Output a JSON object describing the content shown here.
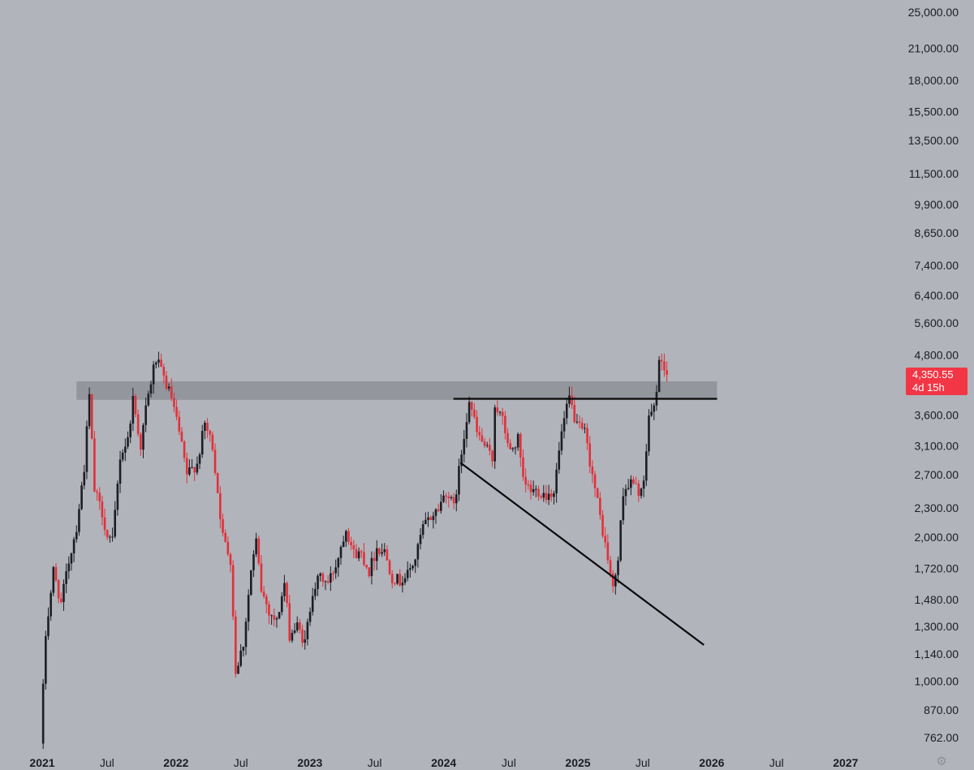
{
  "chart_data": {
    "type": "candlestick",
    "title": "",
    "xlabel": "",
    "ylabel": "",
    "y_scale": "log",
    "y_ticks": [
      "25,000.00",
      "21,000.00",
      "18,000.00",
      "15,500.00",
      "13,500.00",
      "11,500.00",
      "9,900.00",
      "8,650.00",
      "7,400.00",
      "6,400.00",
      "5,600.00",
      "4,800.00",
      "3,600.00",
      "3,100.00",
      "2,700.00",
      "2,300.00",
      "2,000.00",
      "1,720.00",
      "1,480.00",
      "1,300.00",
      "1,140.00",
      "1,000.00",
      "870.00",
      "762.00"
    ],
    "x_ticks": [
      {
        "label": "2021",
        "date": "2021-01-01",
        "bold": true
      },
      {
        "label": "Jul",
        "date": "2021-07-01",
        "bold": false
      },
      {
        "label": "2022",
        "date": "2022-01-01",
        "bold": true
      },
      {
        "label": "Jul",
        "date": "2022-07-01",
        "bold": false
      },
      {
        "label": "2023",
        "date": "2023-01-01",
        "bold": true
      },
      {
        "label": "Jul",
        "date": "2023-07-01",
        "bold": false
      },
      {
        "label": "2024",
        "date": "2024-01-01",
        "bold": true
      },
      {
        "label": "Jul",
        "date": "2024-07-01",
        "bold": false
      },
      {
        "label": "2025",
        "date": "2025-01-01",
        "bold": true
      },
      {
        "label": "Jul",
        "date": "2025-07-01",
        "bold": false
      },
      {
        "label": "2026",
        "date": "2026-01-01",
        "bold": true
      },
      {
        "label": "Jul",
        "date": "2026-07-01",
        "bold": false
      },
      {
        "label": "2027",
        "date": "2027-01-01",
        "bold": true
      }
    ],
    "price_path": [
      [
        "2021-01-01",
        740
      ],
      [
        "2021-01-15",
        1250
      ],
      [
        "2021-02-05",
        1700
      ],
      [
        "2021-02-26",
        1450
      ],
      [
        "2021-03-19",
        1780
      ],
      [
        "2021-04-09",
        2100
      ],
      [
        "2021-04-30",
        2800
      ],
      [
        "2021-05-14",
        3950
      ],
      [
        "2021-05-28",
        2500
      ],
      [
        "2021-06-18",
        2250
      ],
      [
        "2021-07-02",
        2000
      ],
      [
        "2021-07-16",
        1950
      ],
      [
        "2021-08-06",
        2950
      ],
      [
        "2021-08-27",
        3200
      ],
      [
        "2021-09-10",
        3900
      ],
      [
        "2021-10-01",
        3100
      ],
      [
        "2021-10-15",
        3700
      ],
      [
        "2021-11-05",
        4500
      ],
      [
        "2021-11-12",
        4700
      ],
      [
        "2021-12-03",
        4300
      ],
      [
        "2021-12-24",
        3900
      ],
      [
        "2022-01-14",
        3300
      ],
      [
        "2022-02-04",
        2700
      ],
      [
        "2022-03-04",
        2850
      ],
      [
        "2022-03-25",
        3450
      ],
      [
        "2022-04-15",
        3100
      ],
      [
        "2022-05-13",
        2000
      ],
      [
        "2022-06-03",
        1800
      ],
      [
        "2022-06-17",
        1050
      ],
      [
        "2022-07-08",
        1200
      ],
      [
        "2022-07-29",
        1700
      ],
      [
        "2022-08-12",
        1950
      ],
      [
        "2022-08-26",
        1550
      ],
      [
        "2022-09-16",
        1400
      ],
      [
        "2022-10-07",
        1330
      ],
      [
        "2022-10-28",
        1600
      ],
      [
        "2022-11-11",
        1250
      ],
      [
        "2022-12-02",
        1300
      ],
      [
        "2022-12-23",
        1200
      ],
      [
        "2023-01-13",
        1550
      ],
      [
        "2023-02-03",
        1650
      ],
      [
        "2023-02-24",
        1600
      ],
      [
        "2023-03-17",
        1750
      ],
      [
        "2023-04-14",
        2100
      ],
      [
        "2023-05-05",
        1850
      ],
      [
        "2023-05-26",
        1850
      ],
      [
        "2023-06-16",
        1700
      ],
      [
        "2023-07-07",
        1900
      ],
      [
        "2023-07-28",
        1870
      ],
      [
        "2023-08-18",
        1650
      ],
      [
        "2023-09-08",
        1620
      ],
      [
        "2023-09-29",
        1670
      ],
      [
        "2023-10-20",
        1800
      ],
      [
        "2023-11-10",
        2100
      ],
      [
        "2023-12-01",
        2200
      ],
      [
        "2023-12-22",
        2300
      ],
      [
        "2024-01-12",
        2500
      ],
      [
        "2024-02-02",
        2300
      ],
      [
        "2024-02-23",
        3000
      ],
      [
        "2024-03-15",
        3900
      ],
      [
        "2024-04-05",
        3300
      ],
      [
        "2024-04-26",
        3100
      ],
      [
        "2024-05-17",
        2900
      ],
      [
        "2024-05-24",
        3800
      ],
      [
        "2024-06-14",
        3500
      ],
      [
        "2024-07-05",
        3000
      ],
      [
        "2024-07-26",
        3200
      ],
      [
        "2024-08-09",
        2600
      ],
      [
        "2024-08-30",
        2500
      ],
      [
        "2024-09-20",
        2500
      ],
      [
        "2024-10-11",
        2450
      ],
      [
        "2024-11-01",
        2500
      ],
      [
        "2024-11-22",
        3300
      ],
      [
        "2024-12-13",
        3900
      ],
      [
        "2025-01-03",
        3400
      ],
      [
        "2025-01-24",
        3300
      ],
      [
        "2025-02-14",
        2700
      ],
      [
        "2025-03-07",
        2200
      ],
      [
        "2025-03-28",
        1800
      ],
      [
        "2025-04-11",
        1550
      ],
      [
        "2025-04-25",
        1800
      ],
      [
        "2025-05-09",
        2500
      ],
      [
        "2025-05-30",
        2600
      ],
      [
        "2025-06-20",
        2500
      ],
      [
        "2025-07-04",
        2550
      ],
      [
        "2025-07-18",
        3600
      ],
      [
        "2025-08-01",
        3700
      ],
      [
        "2025-08-15",
        4600
      ],
      [
        "2025-08-22",
        4700
      ],
      [
        "2025-09-05",
        4350
      ]
    ],
    "resistance_zone": {
      "low": 3870,
      "high": 4230,
      "from": "2021-04-09",
      "to": "2026-01-20"
    },
    "trendlines": [
      {
        "from": {
          "date": "2024-02-01",
          "value": 3890
        },
        "to": {
          "date": "2026-01-20",
          "value": 3890
        }
      },
      {
        "from": {
          "date": "2024-02-20",
          "value": 2860
        },
        "to": {
          "date": "2025-12-15",
          "value": 1190
        }
      }
    ],
    "last_price": {
      "label": "4,350.55",
      "value": 4350.55,
      "countdown": "4d 15h"
    },
    "colors": {
      "background": "#b1b4bb",
      "up_candle": "#1c1e24",
      "down_candle": "#e2303a",
      "zone": "#8e9198",
      "trendline": "#0a0a0a",
      "price_tag": "#f23645",
      "axis_text": "#1b1d22"
    }
  },
  "settings_icon": "gear-icon"
}
